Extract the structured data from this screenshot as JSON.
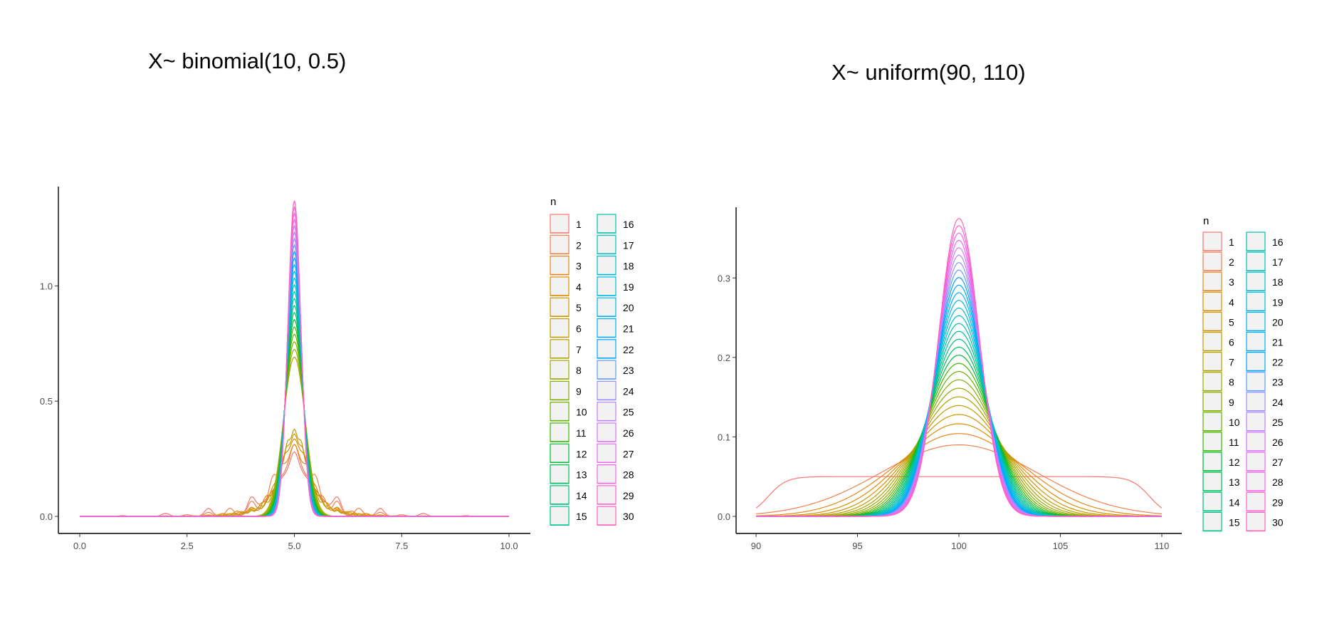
{
  "slide": {
    "left_title": "X~ binomial(10, 0.5)",
    "right_title": "X~ uniform(90, 110)"
  },
  "chart_data": [
    {
      "type": "line",
      "title": "X~ binomial(10, 0.5)",
      "xlabel": "",
      "ylabel": "",
      "xlim": [
        0,
        10
      ],
      "ylim": [
        0,
        1.4
      ],
      "x_ticks": [
        0,
        2.5,
        5,
        7.5,
        10
      ],
      "x_tick_labels": [
        "0.0",
        "2.5",
        "5.0",
        "7.5",
        "10.0"
      ],
      "y_ticks": [
        0,
        0.5,
        1.0
      ],
      "y_tick_labels": [
        "0.0",
        "0.5",
        "1.0"
      ],
      "grid": false,
      "legend": {
        "title": "n",
        "position": "right",
        "columns": 2,
        "entries": [
          "1",
          "2",
          "3",
          "4",
          "5",
          "6",
          "7",
          "8",
          "9",
          "10",
          "11",
          "12",
          "13",
          "14",
          "15",
          "16",
          "17",
          "18",
          "19",
          "20",
          "21",
          "22",
          "23",
          "24",
          "25",
          "26",
          "27",
          "28",
          "29",
          "30"
        ]
      },
      "series_note": "30 kernel density curves of the sample mean for n = 1..30; peak densities ~0.45 (n=1) to ~1.37 (n=30), centered at 5",
      "center": 5,
      "peak_density_range": [
        0.45,
        1.37
      ]
    },
    {
      "type": "line",
      "title": "X~ uniform(90, 110)",
      "xlabel": "",
      "ylabel": "",
      "xlim": [
        90,
        110
      ],
      "ylim": [
        0,
        0.38
      ],
      "x_ticks": [
        90,
        95,
        100,
        105,
        110
      ],
      "x_tick_labels": [
        "90",
        "95",
        "100",
        "105",
        "110"
      ],
      "y_ticks": [
        0,
        0.1,
        0.2,
        0.3
      ],
      "y_tick_labels": [
        "0.0",
        "0.1",
        "0.2",
        "0.3"
      ],
      "grid": false,
      "legend": {
        "title": "n",
        "position": "right",
        "columns": 2,
        "entries": [
          "1",
          "2",
          "3",
          "4",
          "5",
          "6",
          "7",
          "8",
          "9",
          "10",
          "11",
          "12",
          "13",
          "14",
          "15",
          "16",
          "17",
          "18",
          "19",
          "20",
          "21",
          "22",
          "23",
          "24",
          "25",
          "26",
          "27",
          "28",
          "29",
          "30"
        ]
      },
      "series_note": "30 density curves of the sample mean for n = 1..30; n=1 flat at ~0.05, peaks grow to ~0.375 at n=30, centered at 100",
      "center": 100,
      "peak_density_range": [
        0.05,
        0.375
      ]
    }
  ],
  "colors": {
    "palette": [
      "#F8766D",
      "#F07F4F",
      "#E7861B",
      "#DB8E00",
      "#CF9400",
      "#C09B00",
      "#AEA200",
      "#9AA800",
      "#83AD00",
      "#64B200",
      "#39B600",
      "#00BA38",
      "#00BC59",
      "#00BF76",
      "#00C08F",
      "#00C0A8",
      "#00BFBE",
      "#00BCD3",
      "#00B8E5",
      "#00B2F4",
      "#00ABFD",
      "#00A1FF",
      "#619CFF",
      "#9590FF",
      "#B983FF",
      "#D674FD",
      "#E76BF3",
      "#F564E3",
      "#FD61D1",
      "#FF62BC"
    ],
    "axis": "#000000",
    "tick_text": "#4d4d4d",
    "legend_key_fill": "#f2f2f2"
  }
}
